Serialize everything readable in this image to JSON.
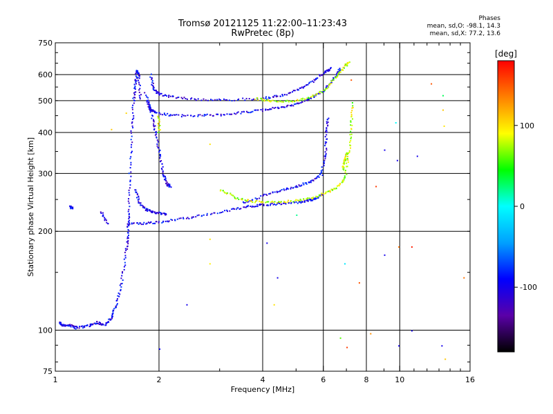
{
  "chart_data": {
    "type": "scatter",
    "title": "Tromsø 20121125 11:22:00–11:23:43",
    "subtitle": "RwPretec (8p)",
    "phases": {
      "heading": "Phases",
      "line_o": "mean, sd,O:  -98.1, 14.3",
      "line_x": "mean, sd,X:  77.2, 13.6"
    },
    "xlabel": "Frequency [MHz]",
    "ylabel": "Stationary phase Virtual Height [km]",
    "x_scale": "log",
    "y_scale": "log",
    "xlim": [
      1,
      16
    ],
    "ylim": [
      75,
      750
    ],
    "x_ticks": [
      1,
      2,
      4,
      6,
      8,
      10,
      16
    ],
    "y_ticks": [
      75,
      100,
      200,
      300,
      400,
      500,
      600,
      750
    ],
    "x_gridlines": [
      2,
      4,
      6,
      8,
      10
    ],
    "y_gridlines": [
      100,
      200,
      300,
      400,
      500,
      600
    ],
    "colorbar": {
      "label": "[deg]",
      "range": [
        -180,
        180
      ],
      "ticks": [
        100,
        0,
        -100
      ],
      "colors": [
        "#000000",
        "#5a00a8",
        "#0000ff",
        "#00a0ff",
        "#00ffff",
        "#00ff00",
        "#ffff00",
        "#ff8000",
        "#ff0000"
      ]
    },
    "series": [
      {
        "mode": "O",
        "phase_deg": -100,
        "segments": [
          [
            [
              1.02,
              106
            ],
            [
              1.05,
              104
            ],
            [
              1.1,
              104
            ],
            [
              1.15,
              102
            ],
            [
              1.25,
              104
            ],
            [
              1.32,
              106
            ],
            [
              1.38,
              104
            ],
            [
              1.45,
              110
            ],
            [
              1.5,
              120
            ],
            [
              1.55,
              140
            ],
            [
              1.6,
              175
            ],
            [
              1.62,
              200
            ],
            [
              1.63,
              230
            ],
            [
              1.64,
              300
            ],
            [
              1.66,
              400
            ],
            [
              1.68,
              500
            ],
            [
              1.7,
              560
            ],
            [
              1.72,
              620
            ],
            [
              1.74,
              600
            ],
            [
              1.76,
              500
            ]
          ],
          [
            [
              1.62,
              212
            ],
            [
              1.8,
              212
            ],
            [
              2.0,
              214
            ],
            [
              2.3,
              219
            ],
            [
              2.7,
              225
            ],
            [
              3.2,
              233
            ],
            [
              3.6,
              239
            ],
            [
              4.0,
              242
            ],
            [
              4.5,
              244
            ],
            [
              5.0,
              246
            ],
            [
              5.4,
              249
            ],
            [
              5.7,
              253
            ],
            [
              6.0,
              262
            ]
          ],
          [
            [
              1.7,
              270
            ],
            [
              1.75,
              245
            ],
            [
              1.82,
              235
            ],
            [
              1.9,
              230
            ],
            [
              2.0,
              228
            ],
            [
              2.1,
              226
            ]
          ],
          [
            [
              3.5,
              245
            ],
            [
              4.0,
              258
            ],
            [
              4.5,
              268
            ],
            [
              5.0,
              275
            ],
            [
              5.5,
              285
            ],
            [
              5.9,
              300
            ],
            [
              6.05,
              340
            ],
            [
              6.1,
              400
            ],
            [
              6.15,
              450
            ]
          ],
          [
            [
              1.85,
              500
            ],
            [
              1.88,
              470
            ],
            [
              1.95,
              462
            ],
            [
              2.2,
              452
            ],
            [
              2.6,
              452
            ],
            [
              3.0,
              455
            ],
            [
              3.5,
              463
            ],
            [
              4.0,
              470
            ],
            [
              4.5,
              480
            ],
            [
              5.0,
              490
            ],
            [
              5.5,
              510
            ],
            [
              6.0,
              540
            ],
            [
              6.5,
              600
            ],
            [
              6.7,
              630
            ]
          ],
          [
            [
              1.88,
              600
            ],
            [
              1.93,
              540
            ],
            [
              2.0,
              525
            ],
            [
              2.2,
              515
            ],
            [
              2.6,
              505
            ],
            [
              3.2,
              505
            ],
            [
              4.0,
              510
            ],
            [
              4.5,
              520
            ],
            [
              5.0,
              540
            ],
            [
              5.5,
              570
            ],
            [
              6.0,
              610
            ],
            [
              6.3,
              630
            ]
          ],
          [
            [
              1.82,
              530
            ],
            [
              1.9,
              450
            ],
            [
              1.95,
              400
            ],
            [
              2.0,
              350
            ],
            [
              2.05,
              300
            ],
            [
              2.1,
              280
            ],
            [
              2.15,
              275
            ]
          ],
          [
            [
              1.1,
              240
            ],
            [
              1.12,
              235
            ]
          ],
          [
            [
              1.35,
              230
            ],
            [
              1.42,
              210
            ]
          ]
        ]
      },
      {
        "mode": "X",
        "phase_deg": 80,
        "segments": [
          [
            [
              3.0,
              270
            ],
            [
              3.3,
              255
            ],
            [
              3.7,
              248
            ],
            [
              4.2,
              246
            ],
            [
              4.8,
              248
            ],
            [
              5.4,
              252
            ],
            [
              6.0,
              262
            ],
            [
              6.5,
              272
            ],
            [
              6.9,
              290
            ],
            [
              7.1,
              350
            ],
            [
              7.2,
              420
            ],
            [
              7.25,
              500
            ]
          ],
          [
            [
              3.8,
              510
            ],
            [
              4.2,
              500
            ],
            [
              4.8,
              500
            ],
            [
              5.4,
              510
            ],
            [
              6.0,
              540
            ],
            [
              6.5,
              590
            ],
            [
              6.9,
              640
            ],
            [
              7.1,
              660
            ]
          ],
          [
            [
              1.98,
              450
            ],
            [
              2.0,
              400
            ]
          ],
          [
            [
              6.8,
              310
            ],
            [
              6.9,
              330
            ],
            [
              7.0,
              350
            ]
          ]
        ]
      }
    ],
    "sparse_points": [
      {
        "x": 1.45,
        "y": 410,
        "phase_deg": 110
      },
      {
        "x": 1.6,
        "y": 460,
        "phase_deg": 105
      },
      {
        "x": 2.8,
        "y": 370,
        "phase_deg": 100
      },
      {
        "x": 2.8,
        "y": 190,
        "phase_deg": 100
      },
      {
        "x": 2.8,
        "y": 160,
        "phase_deg": 95
      },
      {
        "x": 2.4,
        "y": 120,
        "phase_deg": -100
      },
      {
        "x": 2.0,
        "y": 88,
        "phase_deg": -95
      },
      {
        "x": 4.1,
        "y": 185,
        "phase_deg": -100
      },
      {
        "x": 4.3,
        "y": 120,
        "phase_deg": 100
      },
      {
        "x": 4.4,
        "y": 145,
        "phase_deg": -100
      },
      {
        "x": 5.0,
        "y": 225,
        "phase_deg": 20
      },
      {
        "x": 6.7,
        "y": 95,
        "phase_deg": 60
      },
      {
        "x": 6.9,
        "y": 160,
        "phase_deg": -10
      },
      {
        "x": 7.0,
        "y": 89,
        "phase_deg": 160
      },
      {
        "x": 7.2,
        "y": 580,
        "phase_deg": 150
      },
      {
        "x": 7.6,
        "y": 140,
        "phase_deg": 150
      },
      {
        "x": 8.2,
        "y": 98,
        "phase_deg": 130
      },
      {
        "x": 8.5,
        "y": 275,
        "phase_deg": 160
      },
      {
        "x": 9.0,
        "y": 170,
        "phase_deg": -100
      },
      {
        "x": 9.0,
        "y": 355,
        "phase_deg": -100
      },
      {
        "x": 9.7,
        "y": 430,
        "phase_deg": 0
      },
      {
        "x": 9.8,
        "y": 330,
        "phase_deg": -100
      },
      {
        "x": 9.9,
        "y": 180,
        "phase_deg": 140
      },
      {
        "x": 9.9,
        "y": 90,
        "phase_deg": -100
      },
      {
        "x": 10.8,
        "y": 180,
        "phase_deg": 170
      },
      {
        "x": 10.8,
        "y": 100,
        "phase_deg": -100
      },
      {
        "x": 11.2,
        "y": 340,
        "phase_deg": -100
      },
      {
        "x": 12.3,
        "y": 565,
        "phase_deg": 150
      },
      {
        "x": 13.3,
        "y": 520,
        "phase_deg": 30
      },
      {
        "x": 13.3,
        "y": 470,
        "phase_deg": 110
      },
      {
        "x": 13.4,
        "y": 420,
        "phase_deg": 100
      },
      {
        "x": 13.5,
        "y": 82,
        "phase_deg": 110
      },
      {
        "x": 13.2,
        "y": 90,
        "phase_deg": -100
      },
      {
        "x": 15.3,
        "y": 145,
        "phase_deg": 140
      }
    ]
  }
}
